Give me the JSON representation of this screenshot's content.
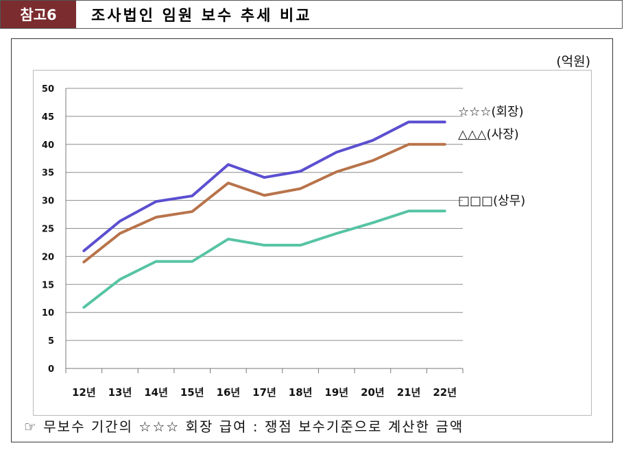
{
  "header": {
    "tag": "참고6",
    "title": "조사법인 임원 보수 추세 비교"
  },
  "unit_label": "(억원)",
  "footnote": "☞ 무보수 기간의 ☆☆☆ 회장 급여 : 쟁점 보수기준으로 계산한 금액",
  "colors": {
    "tag_bg": "#7b2c2e",
    "series_chairman": "#5b4fd0",
    "series_president": "#b8734a",
    "series_director": "#57c4a4",
    "gridline": "#8c8c8c"
  },
  "chart_data": {
    "type": "line",
    "categories": [
      "12년",
      "13년",
      "14년",
      "15년",
      "16년",
      "17년",
      "18년",
      "19년",
      "20년",
      "21년",
      "22년"
    ],
    "ylim": [
      0,
      50
    ],
    "yticks": [
      0,
      5,
      10,
      15,
      20,
      25,
      30,
      35,
      40,
      45,
      50
    ],
    "grid": true,
    "legend_placement": "right, beside line ends",
    "series": [
      {
        "name": "☆☆☆(회장)",
        "color": "#5b4fd0",
        "values": [
          21,
          26.3,
          29.8,
          30.8,
          36.4,
          34.1,
          35.2,
          38.6,
          40.7,
          44,
          44
        ]
      },
      {
        "name": "△△△(사장)",
        "color": "#b8734a",
        "values": [
          19,
          24.1,
          27,
          28,
          33.1,
          30.9,
          32.1,
          35.1,
          37.1,
          40,
          40
        ]
      },
      {
        "name": "□□□(상무)",
        "color": "#57c4a4",
        "values": [
          10.9,
          15.9,
          19.1,
          19.1,
          23.1,
          22,
          22,
          24.1,
          26,
          28.1,
          28.1
        ]
      }
    ]
  }
}
